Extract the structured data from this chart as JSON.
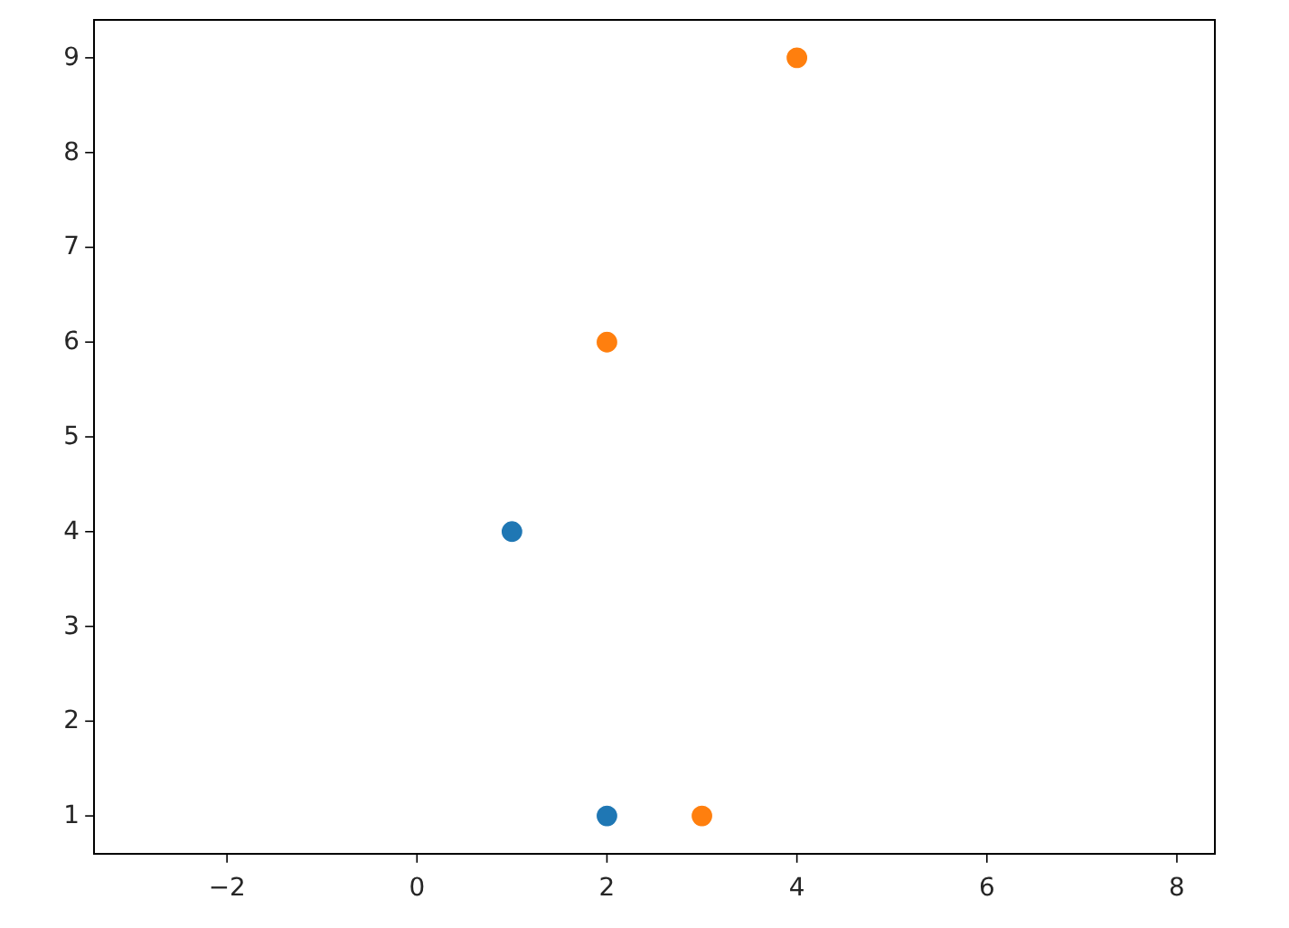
{
  "chart_data": {
    "type": "scatter",
    "series": [
      {
        "color": "#1f77b4",
        "x": [
          1,
          2
        ],
        "values": [
          4,
          1
        ]
      },
      {
        "color": "#ff7f0e",
        "x": [
          2,
          3,
          4
        ],
        "values": [
          6,
          1,
          9
        ]
      }
    ],
    "xlim": [
      -3.4,
      8.4
    ],
    "ylim": [
      0.6,
      9.4
    ],
    "xticks": [
      {
        "value": -2,
        "label": "−2"
      },
      0,
      2,
      4,
      6,
      8
    ],
    "yticks": [
      1,
      2,
      3,
      4,
      5,
      6,
      7,
      8,
      9
    ],
    "marker": "circle"
  }
}
